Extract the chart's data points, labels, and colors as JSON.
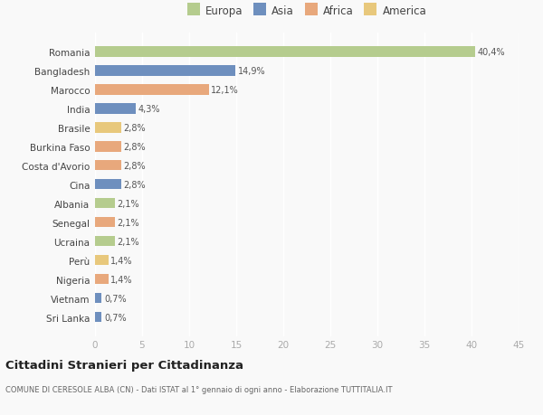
{
  "categories": [
    "Romania",
    "Bangladesh",
    "Marocco",
    "India",
    "Brasile",
    "Burkina Faso",
    "Costa d'Avorio",
    "Cina",
    "Albania",
    "Senegal",
    "Ucraina",
    "Perù",
    "Nigeria",
    "Vietnam",
    "Sri Lanka"
  ],
  "values": [
    40.4,
    14.9,
    12.1,
    4.3,
    2.8,
    2.8,
    2.8,
    2.8,
    2.1,
    2.1,
    2.1,
    1.4,
    1.4,
    0.7,
    0.7
  ],
  "labels": [
    "40,4%",
    "14,9%",
    "12,1%",
    "4,3%",
    "2,8%",
    "2,8%",
    "2,8%",
    "2,8%",
    "2,1%",
    "2,1%",
    "2,1%",
    "1,4%",
    "1,4%",
    "0,7%",
    "0,7%"
  ],
  "colors": [
    "#b5cc8e",
    "#6e8fbe",
    "#e8a87c",
    "#6e8fbe",
    "#e8c87c",
    "#e8a87c",
    "#e8a87c",
    "#6e8fbe",
    "#b5cc8e",
    "#e8a87c",
    "#b5cc8e",
    "#e8c87c",
    "#e8a87c",
    "#6e8fbe",
    "#6e8fbe"
  ],
  "legend_labels": [
    "Europa",
    "Asia",
    "Africa",
    "America"
  ],
  "legend_colors": [
    "#b5cc8e",
    "#6e8fbe",
    "#e8a87c",
    "#e8c87c"
  ],
  "title": "Cittadini Stranieri per Cittadinanza",
  "subtitle": "COMUNE DI CERESOLE ALBA (CN) - Dati ISTAT al 1° gennaio di ogni anno - Elaborazione TUTTITALIA.IT",
  "xlim": [
    0,
    45
  ],
  "xticks": [
    0,
    5,
    10,
    15,
    20,
    25,
    30,
    35,
    40,
    45
  ],
  "bg_color": "#f9f9f9",
  "plot_bg_color": "#f9f9f9"
}
